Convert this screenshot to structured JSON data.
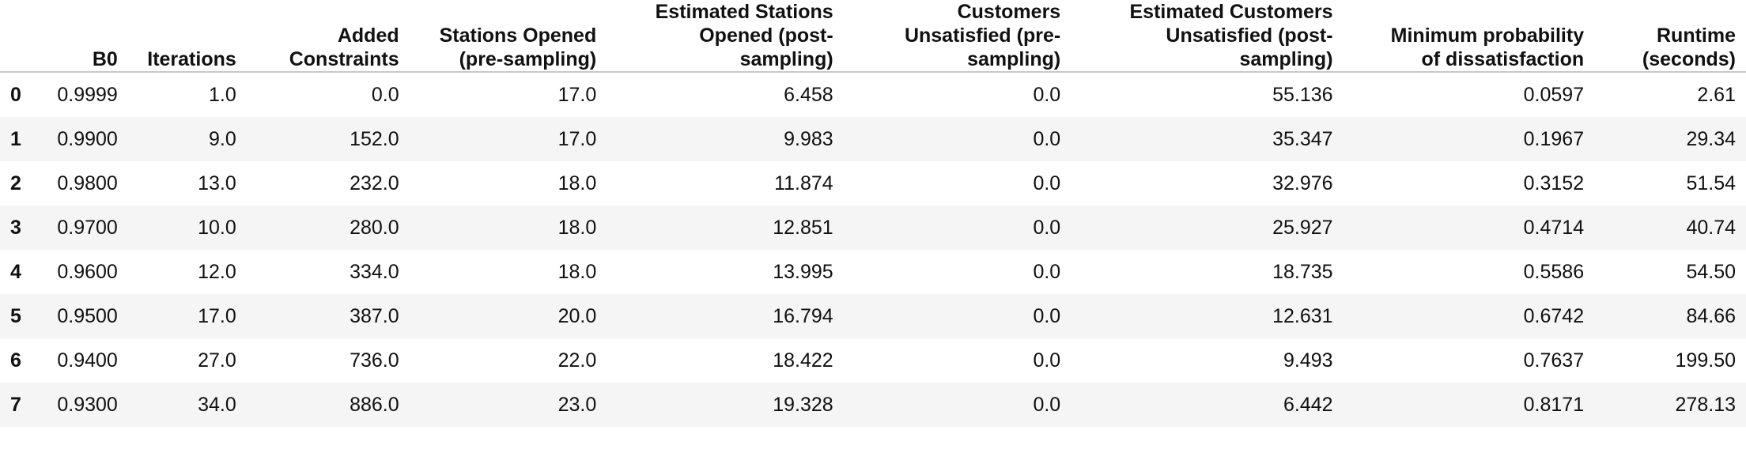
{
  "table": {
    "columns": [
      "",
      "B0",
      "Iterations",
      "Added\nConstraints",
      "Stations Opened\n(pre-sampling)",
      "Estimated Stations\nOpened (post-\nsampling)",
      "Customers\nUnsatisfied (pre-\nsampling)",
      "Estimated Customers\nUnsatisfied (post-\nsampling)",
      "Minimum probability\nof dissatisfaction",
      "Runtime\n(seconds)"
    ],
    "rows": [
      [
        "0",
        "0.9999",
        "1.0",
        "0.0",
        "17.0",
        "6.458",
        "0.0",
        "55.136",
        "0.0597",
        "2.61"
      ],
      [
        "1",
        "0.9900",
        "9.0",
        "152.0",
        "17.0",
        "9.983",
        "0.0",
        "35.347",
        "0.1967",
        "29.34"
      ],
      [
        "2",
        "0.9800",
        "13.0",
        "232.0",
        "18.0",
        "11.874",
        "0.0",
        "32.976",
        "0.3152",
        "51.54"
      ],
      [
        "3",
        "0.9700",
        "10.0",
        "280.0",
        "18.0",
        "12.851",
        "0.0",
        "25.927",
        "0.4714",
        "40.74"
      ],
      [
        "4",
        "0.9600",
        "12.0",
        "334.0",
        "18.0",
        "13.995",
        "0.0",
        "18.735",
        "0.5586",
        "54.50"
      ],
      [
        "5",
        "0.9500",
        "17.0",
        "387.0",
        "20.0",
        "16.794",
        "0.0",
        "12.631",
        "0.6742",
        "84.66"
      ],
      [
        "6",
        "0.9400",
        "27.0",
        "736.0",
        "22.0",
        "18.422",
        "0.0",
        "9.493",
        "0.7637",
        "199.50"
      ],
      [
        "7",
        "0.9300",
        "34.0",
        "886.0",
        "23.0",
        "19.328",
        "0.0",
        "6.442",
        "0.8171",
        "278.13"
      ]
    ]
  }
}
